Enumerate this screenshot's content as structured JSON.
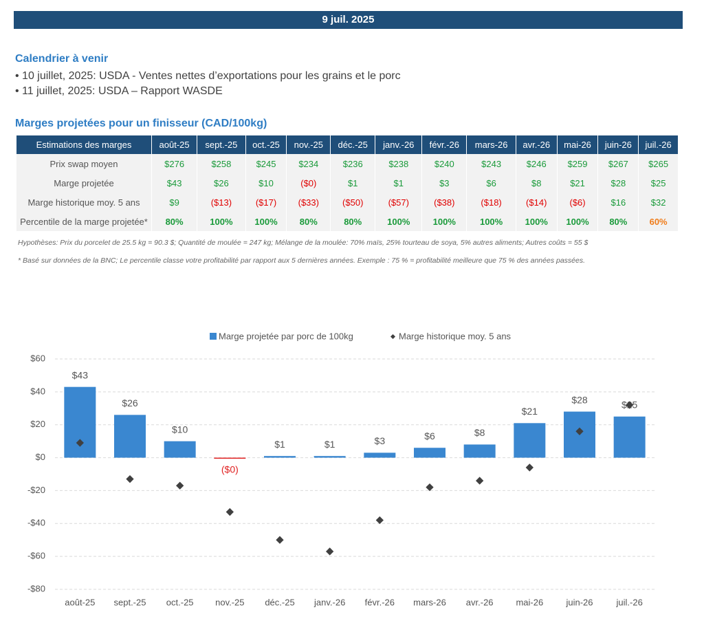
{
  "header": {
    "date": "9 juil. 2025"
  },
  "calendar": {
    "title": "Calendrier à venir",
    "items": [
      "10 juillet, 2025: USDA - Ventes nettes d’exportations pour les grains et le porc",
      "11 juillet, 2025: USDA – Rapport WASDE"
    ]
  },
  "table": {
    "title": "Marges projetées pour un finisseur (CAD/100kg)",
    "header": [
      "Estimations des marges",
      "août-25",
      "sept.-25",
      "oct.-25",
      "nov.-25",
      "déc.-25",
      "janv.-26",
      "févr.-26",
      "mars-26",
      "avr.-26",
      "mai-26",
      "juin-26",
      "juil.-26"
    ],
    "rows": [
      {
        "cells": [
          "Prix swap moyen",
          "$276",
          "$258",
          "$245",
          "$234",
          "$236",
          "$238",
          "$240",
          "$243",
          "$246",
          "$259",
          "$267",
          "$265"
        ],
        "colors": [
          "#1a9a3a",
          "#1a9a3a",
          "#1a9a3a",
          "#1a9a3a",
          "#1a9a3a",
          "#1a9a3a",
          "#1a9a3a",
          "#1a9a3a",
          "#1a9a3a",
          "#1a9a3a",
          "#1a9a3a",
          "#1a9a3a"
        ]
      },
      {
        "cells": [
          "Marge projetée",
          "$43",
          "$26",
          "$10",
          "($0)",
          "$1",
          "$1",
          "$3",
          "$6",
          "$8",
          "$21",
          "$28",
          "$25"
        ],
        "colors": [
          "#1a9a3a",
          "#1a9a3a",
          "#1a9a3a",
          "#e00000",
          "#1a9a3a",
          "#1a9a3a",
          "#1a9a3a",
          "#1a9a3a",
          "#1a9a3a",
          "#1a9a3a",
          "#1a9a3a",
          "#1a9a3a"
        ]
      },
      {
        "cells": [
          "Marge historique moy. 5 ans",
          "$9",
          "($13)",
          "($17)",
          "($33)",
          "($50)",
          "($57)",
          "($38)",
          "($18)",
          "($14)",
          "($6)",
          "$16",
          "$32"
        ],
        "colors": [
          "#1a9a3a",
          "#e00000",
          "#e00000",
          "#e00000",
          "#e00000",
          "#e00000",
          "#e00000",
          "#e00000",
          "#e00000",
          "#e00000",
          "#1a9a3a",
          "#1a9a3a"
        ]
      },
      {
        "cells": [
          "Percentile de la marge projetée*",
          "80%",
          "100%",
          "100%",
          "80%",
          "80%",
          "100%",
          "100%",
          "100%",
          "100%",
          "100%",
          "80%",
          "60%"
        ],
        "colors": [
          "#1a9a3a",
          "#1a9a3a",
          "#1a9a3a",
          "#1a9a3a",
          "#1a9a3a",
          "#1a9a3a",
          "#1a9a3a",
          "#1a9a3a",
          "#1a9a3a",
          "#1a9a3a",
          "#1a9a3a",
          "#f07c1a"
        ],
        "bold": true
      }
    ]
  },
  "notes": [
    "Hypothèses: Prix du porcelet de 25.5 kg = 90.3 $; Quantité de moulée = 247 kg; Mélange de la moulée: 70% maïs, 25% tourteau de soya, 5% autres aliments; Autres coûts = 55 $",
    "* Basé sur données de la BNC; Le percentile classe votre profitabilité par rapport aux 5 dernières années. Exemple : 75 % = profitabilité meilleure que 75 % des années passées."
  ],
  "chart_data": {
    "type": "bar",
    "categories": [
      "août-25",
      "sept.-25",
      "oct.-25",
      "nov.-25",
      "déc.-25",
      "janv.-26",
      "févr.-26",
      "mars-26",
      "avr.-26",
      "mai-26",
      "juin-26",
      "juil.-26"
    ],
    "series": [
      {
        "name": "Marge projetée par porc de 100kg",
        "type": "bar",
        "color": "#3a87d0",
        "negative_color": "#e02020",
        "values": [
          43,
          26,
          10,
          -0.4,
          1,
          1,
          3,
          6,
          8,
          21,
          28,
          25
        ],
        "value_labels": [
          "$43",
          "$26",
          "$10",
          "($0)",
          "$1",
          "$1",
          "$3",
          "$6",
          "$8",
          "$21",
          "$28",
          "$25"
        ]
      },
      {
        "name": "Marge historique moy. 5 ans",
        "type": "scatter",
        "color": "#404040",
        "values": [
          9,
          -13,
          -17,
          -33,
          -50,
          -57,
          -38,
          -18,
          -14,
          -6,
          16,
          32
        ]
      }
    ],
    "ylim": [
      -80,
      60
    ],
    "yticks": [
      {
        "value": -80,
        "label": "-$80"
      },
      {
        "value": -60,
        "label": "-$60"
      },
      {
        "value": -40,
        "label": "-$40"
      },
      {
        "value": -20,
        "label": "-$20"
      },
      {
        "value": 0,
        "label": "$0"
      },
      {
        "value": 20,
        "label": "$20"
      },
      {
        "value": 40,
        "label": "$40"
      },
      {
        "value": 60,
        "label": "$60"
      }
    ],
    "grid": true,
    "legend": "top"
  }
}
